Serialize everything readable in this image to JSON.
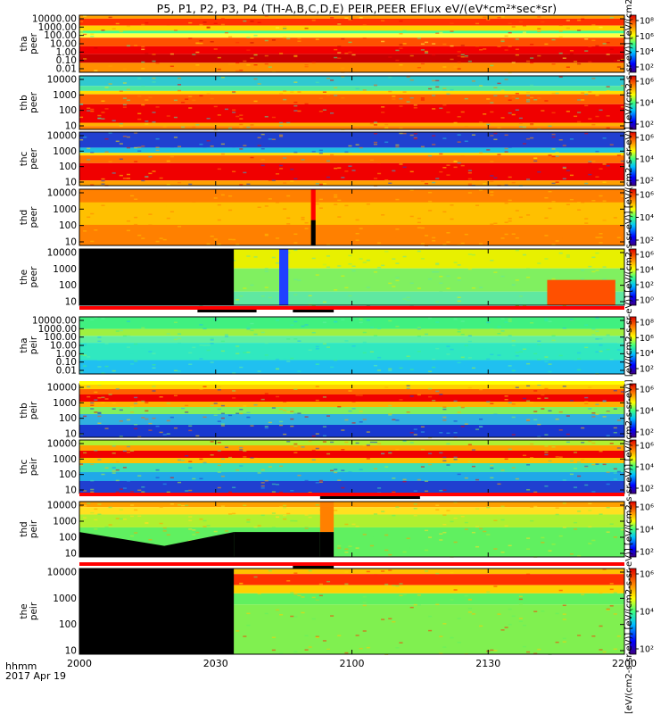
{
  "title": "P5, P1, P2, P3, P4 (TH-A,B,C,D,E) PEIR,PEER EFlux eV/(eV*cm²*sec*sr)",
  "footer": {
    "time_label": "hhmm",
    "date_label": "2017 Apr 19"
  },
  "colorbar_unit_text": "[eV/(cm2-s-sr-eV)] [eV/(cm2-s-sr-eV)] [eV/(cm2-s-sr-eV)] [eV/(cm2-s-sr-eV)] [eV/(cm2-s-sr-eV)] [eV/(cm2-s-sr-eV)] [eV/(cm2-s-sr-eV)] [eV/(cm2-s-sr-eV)] [eV/(cm2-s-sr-eV)] [eV/(cm2-s-sr-eV)]",
  "colors": {
    "flag_red": "#ff0000",
    "flag_black": "#000000",
    "fill_black": "#000000",
    "axis": "#000000"
  },
  "chart_data": {
    "type": "heatmap",
    "x_axis": {
      "ticks": [
        "2000",
        "2030",
        "2100",
        "2130",
        "2200"
      ],
      "range": [
        "2000",
        "2200"
      ],
      "units": "hhmm"
    },
    "panels": [
      {
        "id": "tha-peer",
        "probe": "tha",
        "species": "peer",
        "yticks": [
          "10000.00",
          "1000.00",
          "100.00",
          "10.00",
          "1.00",
          "0.10",
          "0.01"
        ],
        "cbar_ticks": [
          "10⁸",
          "10⁶",
          "10⁴",
          "10²"
        ],
        "bands": [
          {
            "from": 0,
            "to": 4,
            "color": "#ffa000"
          },
          {
            "from": 4,
            "to": 12,
            "color": "#ff3000"
          },
          {
            "from": 12,
            "to": 18,
            "color": "#ffd400"
          },
          {
            "from": 18,
            "to": 21,
            "color": "#40ff90"
          },
          {
            "from": 21,
            "to": 26,
            "color": "#ffff40"
          },
          {
            "from": 26,
            "to": 36,
            "color": "#ff5000"
          },
          {
            "from": 36,
            "to": 45,
            "color": "#f20000"
          },
          {
            "from": 45,
            "to": 55,
            "color": "#c80000"
          },
          {
            "from": 55,
            "to": 66,
            "color": "#ff9000"
          }
        ],
        "events": []
      },
      {
        "id": "thb-peer",
        "probe": "thb",
        "species": "peer",
        "yticks": [
          "10000",
          "1000",
          "100",
          "10"
        ],
        "cbar_ticks": [
          "10⁶",
          "10⁴",
          "10²"
        ],
        "bands": [
          {
            "from": 0,
            "to": 12,
            "color": "#30c8d0"
          },
          {
            "from": 12,
            "to": 18,
            "color": "#50e8a0"
          },
          {
            "from": 18,
            "to": 22,
            "color": "#ffe000"
          },
          {
            "from": 22,
            "to": 34,
            "color": "#ff6000"
          },
          {
            "from": 34,
            "to": 56,
            "color": "#f00000"
          },
          {
            "from": 56,
            "to": 60,
            "color": "#ffb000"
          },
          {
            "from": 60,
            "to": 64,
            "color": "#ff8000"
          }
        ],
        "events": []
      },
      {
        "id": "thc-peer",
        "probe": "thc",
        "species": "peer",
        "yticks": [
          "10000",
          "1000",
          "100",
          "10"
        ],
        "cbar_ticks": [
          "10⁶",
          "10⁴",
          "10²"
        ],
        "bands": [
          {
            "from": 0,
            "to": 18,
            "color": "#2040d0"
          },
          {
            "from": 18,
            "to": 24,
            "color": "#20c0e0"
          },
          {
            "from": 24,
            "to": 27,
            "color": "#ffe000"
          },
          {
            "from": 27,
            "to": 36,
            "color": "#ff7000"
          },
          {
            "from": 36,
            "to": 56,
            "color": "#f00000"
          },
          {
            "from": 56,
            "to": 62,
            "color": "#ffa000"
          }
        ],
        "events": []
      },
      {
        "id": "thd-peer",
        "probe": "thd",
        "species": "peer",
        "yticks": [
          "10000",
          "1000",
          "100",
          "10"
        ],
        "cbar_ticks": [
          "10⁶",
          "10⁴",
          "10²"
        ],
        "bands": [
          {
            "from": 0,
            "to": 60,
            "color": "#ff8000"
          },
          {
            "from": 14,
            "to": 38,
            "color": "#ffc000"
          }
        ],
        "events": [
          {
            "start": "2051",
            "end": "2052",
            "color": "#ff0000",
            "part": "top"
          },
          {
            "start": "2051",
            "end": "2052",
            "color": "#000000",
            "part": "bottom"
          }
        ]
      },
      {
        "id": "the-peer",
        "probe": "the",
        "species": "peer",
        "yticks": [
          "10000",
          "1000",
          "100",
          "10"
        ],
        "cbar_ticks": [
          "10⁶",
          "10⁴",
          "10²",
          "10⁰"
        ],
        "bands": [
          {
            "from": 0,
            "to": 20,
            "color": "#e8f000"
          },
          {
            "from": 20,
            "to": 44,
            "color": "#80f060"
          },
          {
            "from": 44,
            "to": 58,
            "color": "#60e8a0"
          }
        ],
        "events": [
          {
            "start": "2000",
            "end": "2034",
            "color": "#000000",
            "part": "full"
          },
          {
            "start": "2044",
            "end": "2046",
            "color": "#2040ff",
            "part": "full"
          },
          {
            "start": "2143",
            "end": "2158",
            "color": "#ff5000",
            "part": "bottom"
          }
        ]
      },
      {
        "id": "tha-peir",
        "probe": "tha",
        "species": "peir",
        "yticks": [
          "10000.00",
          "1000.00",
          "100.00",
          "10.00",
          "1.00",
          "0.10",
          "0.01"
        ],
        "cbar_ticks": [
          "10⁸",
          "10⁶",
          "10⁴",
          "10²"
        ],
        "bands": [
          {
            "from": 0,
            "to": 14,
            "color": "#40f080"
          },
          {
            "from": 14,
            "to": 22,
            "color": "#a0f040"
          },
          {
            "from": 22,
            "to": 30,
            "color": "#60f0a0"
          },
          {
            "from": 30,
            "to": 50,
            "color": "#30e8c0"
          },
          {
            "from": 50,
            "to": 66,
            "color": "#20c0f0"
          }
        ],
        "events": []
      },
      {
        "id": "thb-peir",
        "probe": "thb",
        "species": "peir",
        "yticks": [
          "10000",
          "1000",
          "100",
          "10"
        ],
        "cbar_ticks": [
          "10⁶",
          "10⁴",
          "10²"
        ],
        "bands": [
          {
            "from": 0,
            "to": 6,
            "color": "#ffd000"
          },
          {
            "from": 6,
            "to": 12,
            "color": "#ff6000"
          },
          {
            "from": 12,
            "to": 20,
            "color": "#f00000"
          },
          {
            "from": 20,
            "to": 26,
            "color": "#ffb000"
          },
          {
            "from": 26,
            "to": 34,
            "color": "#80f060"
          },
          {
            "from": 34,
            "to": 46,
            "color": "#30b0e0"
          },
          {
            "from": 46,
            "to": 60,
            "color": "#1838d0"
          }
        ],
        "events": []
      },
      {
        "id": "thc-peir",
        "probe": "thc",
        "species": "peir",
        "yticks": [
          "10000",
          "1000",
          "100",
          "10"
        ],
        "cbar_ticks": [
          "10⁶",
          "10⁴",
          "10²"
        ],
        "bands": [
          {
            "from": 0,
            "to": 6,
            "color": "#b0f030"
          },
          {
            "from": 6,
            "to": 12,
            "color": "#ffa000"
          },
          {
            "from": 12,
            "to": 20,
            "color": "#f00000"
          },
          {
            "from": 20,
            "to": 26,
            "color": "#ffc000"
          },
          {
            "from": 26,
            "to": 36,
            "color": "#40e0b0"
          },
          {
            "from": 36,
            "to": 46,
            "color": "#20a8e8"
          },
          {
            "from": 46,
            "to": 60,
            "color": "#2040d0"
          }
        ],
        "events": []
      },
      {
        "id": "thd-peir",
        "probe": "thd",
        "species": "peir",
        "yticks": [
          "10000",
          "1000",
          "100",
          "10"
        ],
        "cbar_ticks": [
          "10⁶",
          "10⁴",
          "10²"
        ],
        "bands": [
          {
            "from": 0,
            "to": 6,
            "color": "#ffa000"
          },
          {
            "from": 6,
            "to": 14,
            "color": "#ffe020"
          },
          {
            "from": 14,
            "to": 28,
            "color": "#b0f030"
          },
          {
            "from": 28,
            "to": 60,
            "color": "#60f060"
          }
        ],
        "events": [
          {
            "start": "2000",
            "end": "2034",
            "color": "#000000",
            "part": "lower-wedge"
          },
          {
            "start": "2034",
            "end": "2053",
            "color": "#000000",
            "part": "bottom"
          },
          {
            "start": "2053",
            "end": "2056",
            "color": "#ff8000",
            "part": "top"
          },
          {
            "start": "2053",
            "end": "2056",
            "color": "#000000",
            "part": "bottom"
          }
        ]
      },
      {
        "id": "the-peir",
        "probe": "the",
        "species": "peir",
        "yticks": [
          "10000",
          "1000",
          "100",
          "10"
        ],
        "cbar_ticks": [
          "10⁶",
          "10⁴",
          "10²"
        ],
        "bands": [
          {
            "from": 0,
            "to": 4,
            "color": "#ffc000"
          },
          {
            "from": 4,
            "to": 12,
            "color": "#ff3000"
          },
          {
            "from": 12,
            "to": 18,
            "color": "#ffd000"
          },
          {
            "from": 18,
            "to": 26,
            "color": "#60f060"
          },
          {
            "from": 26,
            "to": 62,
            "color": "#80f050"
          }
        ],
        "events": [
          {
            "start": "2000",
            "end": "2034",
            "color": "#000000",
            "part": "full"
          }
        ]
      }
    ],
    "flag_bars": [
      {
        "after_panel": 4,
        "color": "#ff0000",
        "marks": [
          {
            "start": "2026",
            "end": "2039"
          },
          {
            "start": "2047",
            "end": "2056"
          }
        ]
      },
      {
        "after_panel": 5,
        "color": "#ffff00",
        "marks": []
      },
      {
        "after_panel": 7,
        "color": "#ff0000",
        "marks": [
          {
            "start": "2053",
            "end": "2115"
          }
        ]
      },
      {
        "after_panel": 8,
        "color": "#ff0000",
        "marks": [
          {
            "start": "2047",
            "end": "2056"
          }
        ]
      }
    ]
  }
}
